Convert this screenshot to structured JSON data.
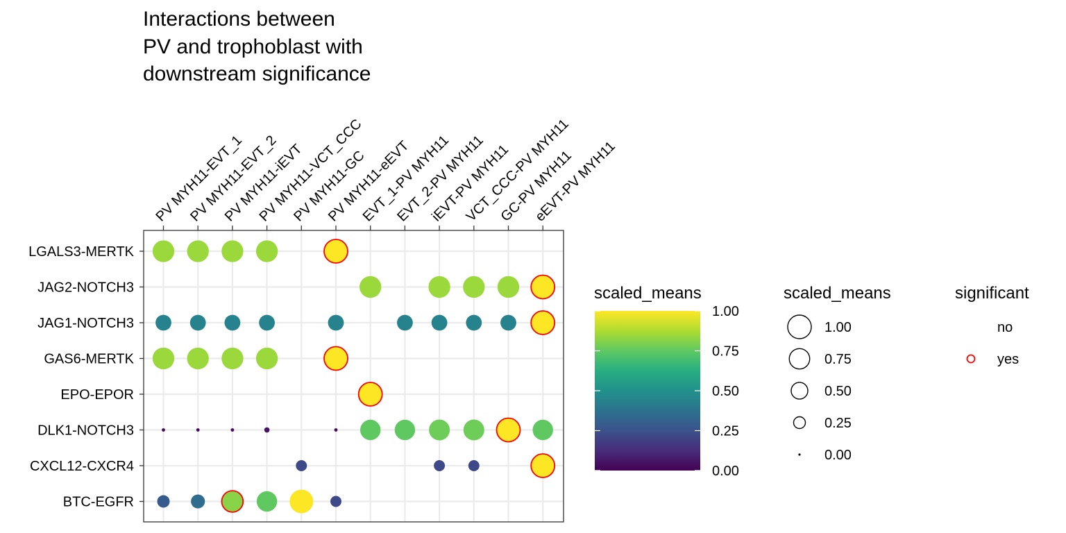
{
  "chart_data": {
    "type": "scatter",
    "title_lines": [
      "Interactions between",
      "PV and trophoblast with",
      "downstream significance"
    ],
    "xlabel": "",
    "ylabel": "",
    "x_categories": [
      "PV MYH11-EVT_1",
      "PV MYH11-EVT_2",
      "PV MYH11-iEVT",
      "PV MYH11-VCT_CCC",
      "PV MYH11-GC",
      "PV MYH11-eEVT",
      "EVT_1-PV MYH11",
      "EVT_2-PV MYH11",
      "iEVT-PV MYH11",
      "VCT_CCC-PV MYH11",
      "GC-PV MYH11",
      "eEVT-PV MYH11"
    ],
    "y_categories": [
      "LGALS3-MERTK",
      "JAG2-NOTCH3",
      "JAG1-NOTCH3",
      "GAS6-MERTK",
      "EPO-EPOR",
      "DLK1-NOTCH3",
      "CXCL12-CXCR4",
      "BTC-EGFR"
    ],
    "grid": true,
    "points": [
      {
        "x": "PV MYH11-EVT_1",
        "y": "LGALS3-MERTK",
        "scaled_means": 0.85,
        "significant": "no"
      },
      {
        "x": "PV MYH11-EVT_2",
        "y": "LGALS3-MERTK",
        "scaled_means": 0.85,
        "significant": "no"
      },
      {
        "x": "PV MYH11-iEVT",
        "y": "LGALS3-MERTK",
        "scaled_means": 0.85,
        "significant": "no"
      },
      {
        "x": "PV MYH11-VCT_CCC",
        "y": "LGALS3-MERTK",
        "scaled_means": 0.85,
        "significant": "no"
      },
      {
        "x": "PV MYH11-eEVT",
        "y": "LGALS3-MERTK",
        "scaled_means": 1.0,
        "significant": "yes"
      },
      {
        "x": "EVT_1-PV MYH11",
        "y": "JAG2-NOTCH3",
        "scaled_means": 0.85,
        "significant": "no"
      },
      {
        "x": "iEVT-PV MYH11",
        "y": "JAG2-NOTCH3",
        "scaled_means": 0.85,
        "significant": "no"
      },
      {
        "x": "VCT_CCC-PV MYH11",
        "y": "JAG2-NOTCH3",
        "scaled_means": 0.85,
        "significant": "no"
      },
      {
        "x": "GC-PV MYH11",
        "y": "JAG2-NOTCH3",
        "scaled_means": 0.85,
        "significant": "no"
      },
      {
        "x": "eEVT-PV MYH11",
        "y": "JAG2-NOTCH3",
        "scaled_means": 1.0,
        "significant": "yes"
      },
      {
        "x": "PV MYH11-EVT_1",
        "y": "JAG1-NOTCH3",
        "scaled_means": 0.45,
        "significant": "no"
      },
      {
        "x": "PV MYH11-EVT_2",
        "y": "JAG1-NOTCH3",
        "scaled_means": 0.45,
        "significant": "no"
      },
      {
        "x": "PV MYH11-iEVT",
        "y": "JAG1-NOTCH3",
        "scaled_means": 0.45,
        "significant": "no"
      },
      {
        "x": "PV MYH11-VCT_CCC",
        "y": "JAG1-NOTCH3",
        "scaled_means": 0.45,
        "significant": "no"
      },
      {
        "x": "PV MYH11-eEVT",
        "y": "JAG1-NOTCH3",
        "scaled_means": 0.45,
        "significant": "no"
      },
      {
        "x": "EVT_2-PV MYH11",
        "y": "JAG1-NOTCH3",
        "scaled_means": 0.45,
        "significant": "no"
      },
      {
        "x": "iEVT-PV MYH11",
        "y": "JAG1-NOTCH3",
        "scaled_means": 0.45,
        "significant": "no"
      },
      {
        "x": "VCT_CCC-PV MYH11",
        "y": "JAG1-NOTCH3",
        "scaled_means": 0.45,
        "significant": "no"
      },
      {
        "x": "GC-PV MYH11",
        "y": "JAG1-NOTCH3",
        "scaled_means": 0.45,
        "significant": "no"
      },
      {
        "x": "eEVT-PV MYH11",
        "y": "JAG1-NOTCH3",
        "scaled_means": 1.0,
        "significant": "yes"
      },
      {
        "x": "PV MYH11-EVT_1",
        "y": "GAS6-MERTK",
        "scaled_means": 0.85,
        "significant": "no"
      },
      {
        "x": "PV MYH11-EVT_2",
        "y": "GAS6-MERTK",
        "scaled_means": 0.85,
        "significant": "no"
      },
      {
        "x": "PV MYH11-iEVT",
        "y": "GAS6-MERTK",
        "scaled_means": 0.85,
        "significant": "no"
      },
      {
        "x": "PV MYH11-VCT_CCC",
        "y": "GAS6-MERTK",
        "scaled_means": 0.85,
        "significant": "no"
      },
      {
        "x": "PV MYH11-eEVT",
        "y": "GAS6-MERTK",
        "scaled_means": 1.0,
        "significant": "yes"
      },
      {
        "x": "EVT_1-PV MYH11",
        "y": "EPO-EPOR",
        "scaled_means": 1.0,
        "significant": "yes"
      },
      {
        "x": "PV MYH11-EVT_1",
        "y": "DLK1-NOTCH3",
        "scaled_means": 0.02,
        "significant": "no"
      },
      {
        "x": "PV MYH11-EVT_2",
        "y": "DLK1-NOTCH3",
        "scaled_means": 0.02,
        "significant": "no"
      },
      {
        "x": "PV MYH11-iEVT",
        "y": "DLK1-NOTCH3",
        "scaled_means": 0.02,
        "significant": "no"
      },
      {
        "x": "PV MYH11-VCT_CCC",
        "y": "DLK1-NOTCH3",
        "scaled_means": 0.05,
        "significant": "no"
      },
      {
        "x": "PV MYH11-eEVT",
        "y": "DLK1-NOTCH3",
        "scaled_means": 0.02,
        "significant": "no"
      },
      {
        "x": "EVT_1-PV MYH11",
        "y": "DLK1-NOTCH3",
        "scaled_means": 0.75,
        "significant": "no"
      },
      {
        "x": "EVT_2-PV MYH11",
        "y": "DLK1-NOTCH3",
        "scaled_means": 0.75,
        "significant": "no"
      },
      {
        "x": "iEVT-PV MYH11",
        "y": "DLK1-NOTCH3",
        "scaled_means": 0.78,
        "significant": "no"
      },
      {
        "x": "VCT_CCC-PV MYH11",
        "y": "DLK1-NOTCH3",
        "scaled_means": 0.78,
        "significant": "no"
      },
      {
        "x": "GC-PV MYH11",
        "y": "DLK1-NOTCH3",
        "scaled_means": 1.0,
        "significant": "yes"
      },
      {
        "x": "eEVT-PV MYH11",
        "y": "DLK1-NOTCH3",
        "scaled_means": 0.75,
        "significant": "no"
      },
      {
        "x": "PV MYH11-GC",
        "y": "CXCL12-CXCR4",
        "scaled_means": 0.22,
        "significant": "no"
      },
      {
        "x": "iEVT-PV MYH11",
        "y": "CXCL12-CXCR4",
        "scaled_means": 0.22,
        "significant": "no"
      },
      {
        "x": "VCT_CCC-PV MYH11",
        "y": "CXCL12-CXCR4",
        "scaled_means": 0.22,
        "significant": "no"
      },
      {
        "x": "eEVT-PV MYH11",
        "y": "CXCL12-CXCR4",
        "scaled_means": 1.0,
        "significant": "yes"
      },
      {
        "x": "PV MYH11-EVT_1",
        "y": "BTC-EGFR",
        "scaled_means": 0.28,
        "significant": "no"
      },
      {
        "x": "PV MYH11-EVT_2",
        "y": "BTC-EGFR",
        "scaled_means": 0.35,
        "significant": "no"
      },
      {
        "x": "PV MYH11-iEVT",
        "y": "BTC-EGFR",
        "scaled_means": 0.82,
        "significant": "yes"
      },
      {
        "x": "PV MYH11-VCT_CCC",
        "y": "BTC-EGFR",
        "scaled_means": 0.75,
        "significant": "no"
      },
      {
        "x": "PV MYH11-GC",
        "y": "BTC-EGFR",
        "scaled_means": 1.0,
        "significant": "no"
      },
      {
        "x": "PV MYH11-eEVT",
        "y": "BTC-EGFR",
        "scaled_means": 0.22,
        "significant": "no"
      }
    ],
    "legends": {
      "color": {
        "title": "scaled_means",
        "range": [
          0,
          1
        ],
        "ticks": [
          "1.00",
          "0.75",
          "0.50",
          "0.25",
          "0.00"
        ],
        "tick_values": [
          1.0,
          0.75,
          0.5,
          0.25,
          0.0
        ],
        "palette": "viridis"
      },
      "size": {
        "title": "scaled_means",
        "labels": [
          "1.00",
          "0.75",
          "0.50",
          "0.25",
          "0.00"
        ],
        "values": [
          1.0,
          0.75,
          0.5,
          0.25,
          0.0
        ]
      },
      "outline": {
        "title": "significant",
        "labels": [
          "no",
          "yes"
        ],
        "colors": {
          "no": "none",
          "yes": "#ff0000"
        }
      }
    },
    "legend_placement": "right"
  }
}
